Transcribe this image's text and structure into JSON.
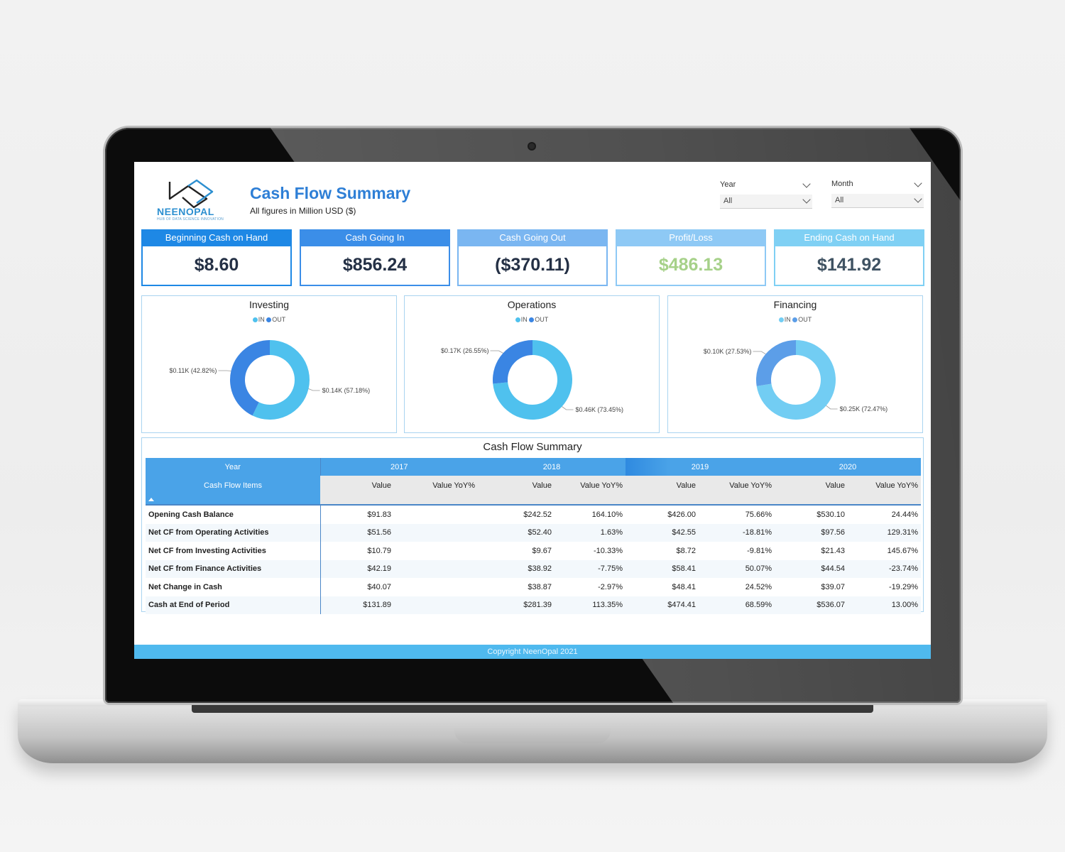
{
  "header": {
    "logo_word": "NEENOPAL",
    "logo_tagline": "HUB OF DATA SCIENCE INNOVATION",
    "title": "Cash Flow Summary",
    "subtitle": "All figures in Million USD ($)"
  },
  "filters": {
    "year": {
      "label": "Year",
      "value": "All"
    },
    "month": {
      "label": "Month",
      "value": "All"
    }
  },
  "kpis": [
    {
      "label": "Beginning Cash on Hand",
      "value": "$8.60",
      "header_color": "#1e88e5",
      "border_color": "#1e88e5",
      "value_color": "#243045"
    },
    {
      "label": "Cash Going In",
      "value": "$856.24",
      "header_color": "#3b8ee8",
      "border_color": "#3b8ee8",
      "value_color": "#243045"
    },
    {
      "label": "Cash Going Out",
      "value": "($370.11)",
      "header_color": "#7ab6f1",
      "border_color": "#7ab6f1",
      "value_color": "#243045"
    },
    {
      "label": "Profit/Loss",
      "value": "$486.13",
      "header_color": "#8ec9f5",
      "border_color": "#8ec9f5",
      "value_color": "#a6d189"
    },
    {
      "label": "Ending Cash on Hand",
      "value": "$141.92",
      "header_color": "#7fd0f4",
      "border_color": "#7fd0f4",
      "value_color": "#3f5262"
    }
  ],
  "donuts": [
    {
      "title": "Investing",
      "legend": [
        "IN",
        "OUT"
      ],
      "colors": {
        "in": "#4fc1ee",
        "out": "#3a85e3"
      },
      "in": {
        "share": 57.18,
        "label": "$0.14K (57.18%)"
      },
      "out": {
        "share": 42.82,
        "label": "$0.11K (42.82%)"
      }
    },
    {
      "title": "Operations",
      "legend": [
        "IN",
        "OUT"
      ],
      "colors": {
        "in": "#4fc1ee",
        "out": "#3a85e3"
      },
      "in": {
        "share": 73.45,
        "label": "$0.46K (73.45%)"
      },
      "out": {
        "share": 26.55,
        "label": "$0.17K (26.55%)"
      }
    },
    {
      "title": "Financing",
      "legend": [
        "IN",
        "OUT"
      ],
      "colors": {
        "in": "#72cdf3",
        "out": "#5c9ee8"
      },
      "in": {
        "share": 72.47,
        "label": "$0.25K (72.47%)"
      },
      "out": {
        "share": 27.53,
        "label": "$0.10K (27.53%)"
      }
    }
  ],
  "table": {
    "title": "Cash Flow Summary",
    "year_header": "Year",
    "items_header": "Cash Flow Items",
    "years": [
      "2017",
      "2018",
      "2019",
      "2020"
    ],
    "col_value": "Value",
    "col_yoy": "Value YoY%",
    "rows": [
      {
        "item": "Opening Cash Balance",
        "vals": [
          "$91.83",
          "",
          "$242.52",
          "164.10%",
          "$426.00",
          "75.66%",
          "$530.10",
          "24.44%"
        ]
      },
      {
        "item": "Net CF from Operating Activities",
        "vals": [
          "$51.56",
          "",
          "$52.40",
          "1.63%",
          "$42.55",
          "-18.81%",
          "$97.56",
          "129.31%"
        ]
      },
      {
        "item": "Net CF from Investing Activities",
        "vals": [
          "$10.79",
          "",
          "$9.67",
          "-10.33%",
          "$8.72",
          "-9.81%",
          "$21.43",
          "145.67%"
        ]
      },
      {
        "item": "Net CF from Finance Activities",
        "vals": [
          "$42.19",
          "",
          "$38.92",
          "-7.75%",
          "$58.41",
          "50.07%",
          "$44.54",
          "-23.74%"
        ]
      },
      {
        "item": "Net Change in Cash",
        "vals": [
          "$40.07",
          "",
          "$38.87",
          "-2.97%",
          "$48.41",
          "24.52%",
          "$39.07",
          "-19.29%"
        ]
      },
      {
        "item": "Cash at End of Period",
        "vals": [
          "$131.89",
          "",
          "$281.39",
          "113.35%",
          "$474.41",
          "68.59%",
          "$536.07",
          "13.00%"
        ]
      }
    ]
  },
  "footer": "Copyright NeenOpal 2021"
}
